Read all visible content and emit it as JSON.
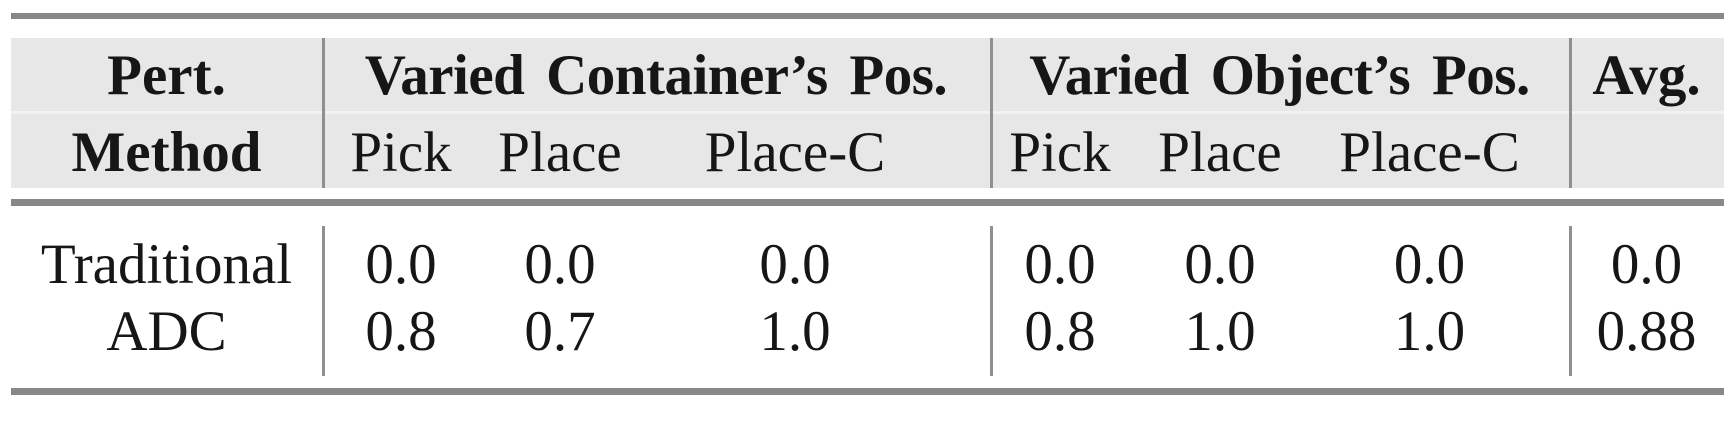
{
  "figure": {
    "type": "results-table",
    "header": {
      "method_col": {
        "line1": "Pert.",
        "line2": "Method"
      },
      "groups": [
        {
          "label": "Varied Container’s Pos.",
          "subcols": [
            "Pick",
            "Place",
            "Place-C"
          ]
        },
        {
          "label": "Varied Object’s Pos.",
          "subcols": [
            "Pick",
            "Place",
            "Place-C"
          ]
        }
      ],
      "avg_label": "Avg."
    },
    "rows": [
      {
        "method": "Traditional",
        "values": [
          "0.0",
          "0.0",
          "0.0",
          "0.0",
          "0.0",
          "0.0"
        ],
        "avg": "0.0"
      },
      {
        "method": "ADC",
        "values": [
          "0.8",
          "0.7",
          "1.0",
          "0.8",
          "1.0",
          "1.0"
        ],
        "avg": "0.88"
      }
    ],
    "colors": {
      "header_bg": "#e7e7e7",
      "rule_gray": "#888888",
      "divider_gray": "#8f8f8f",
      "text": "#161616",
      "background": "#ffffff"
    }
  }
}
